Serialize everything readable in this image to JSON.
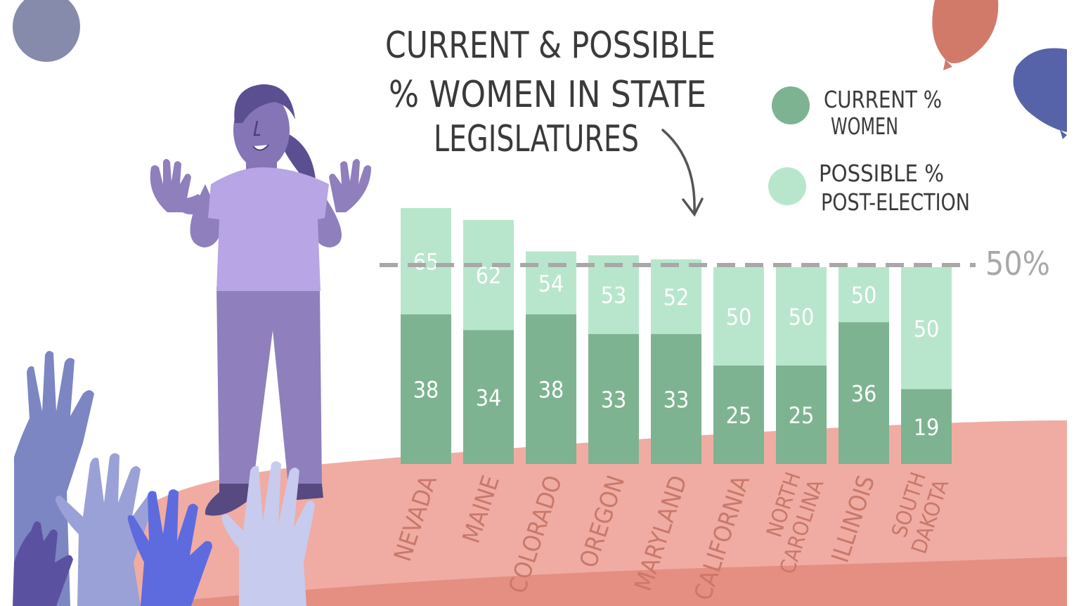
{
  "chart_data": {
    "type": "bar",
    "title": "CURRENT & POSSIBLE % WOMEN IN STATE LEGISLATURES",
    "title_lines": [
      "CURRENT & POSSIBLE",
      "% WOMEN IN STATE",
      "LEGISLATURES"
    ],
    "categories": [
      "NEVADA",
      "MAINE",
      "COLORADO",
      "OREGON",
      "MARYLAND",
      "CALIFORNIA",
      "NORTH CAROLINA",
      "ILLINOIS",
      "SOUTH DAKOTA"
    ],
    "category_lines": [
      [
        "NEVADA"
      ],
      [
        "MAINE"
      ],
      [
        "COLORADO"
      ],
      [
        "OREGON"
      ],
      [
        "MARYLAND"
      ],
      [
        "CALIFORNIA"
      ],
      [
        "NORTH",
        "CAROLINA"
      ],
      [
        "ILLINOIS"
      ],
      [
        "SOUTH",
        "DAKOTA"
      ]
    ],
    "series": [
      {
        "name": "CURRENT % WOMEN",
        "values": [
          38,
          34,
          38,
          33,
          33,
          25,
          25,
          36,
          19
        ],
        "color": "#7db391"
      },
      {
        "name": "POSSIBLE % POST-ELECTION",
        "values": [
          65,
          62,
          54,
          53,
          52,
          50,
          50,
          50,
          50
        ],
        "color": "#b8e6cc"
      }
    ],
    "legend": [
      {
        "lines": [
          "CURRENT %",
          "WOMEN"
        ],
        "color": "#7db391"
      },
      {
        "lines": [
          "POSSIBLE %",
          "POST-ELECTION"
        ],
        "color": "#b8e6cc"
      }
    ],
    "reference_line": {
      "value": 50,
      "label": "50%"
    },
    "legend_position": "top-right",
    "grid": false
  },
  "colors": {
    "stage": "#f0aca2",
    "stage_front": "#e58e82",
    "label_text": "#c9786a",
    "dashed_line": "#a8a8a8",
    "title_text": "#3a3a3a",
    "bar_text": "#ffffff"
  },
  "illustration": {
    "figure": "woman-presenting-figure",
    "hands": "raised-hands-crowd",
    "balloons": [
      "purple-gray-balloon",
      "coral-balloon",
      "blue-balloon"
    ]
  }
}
